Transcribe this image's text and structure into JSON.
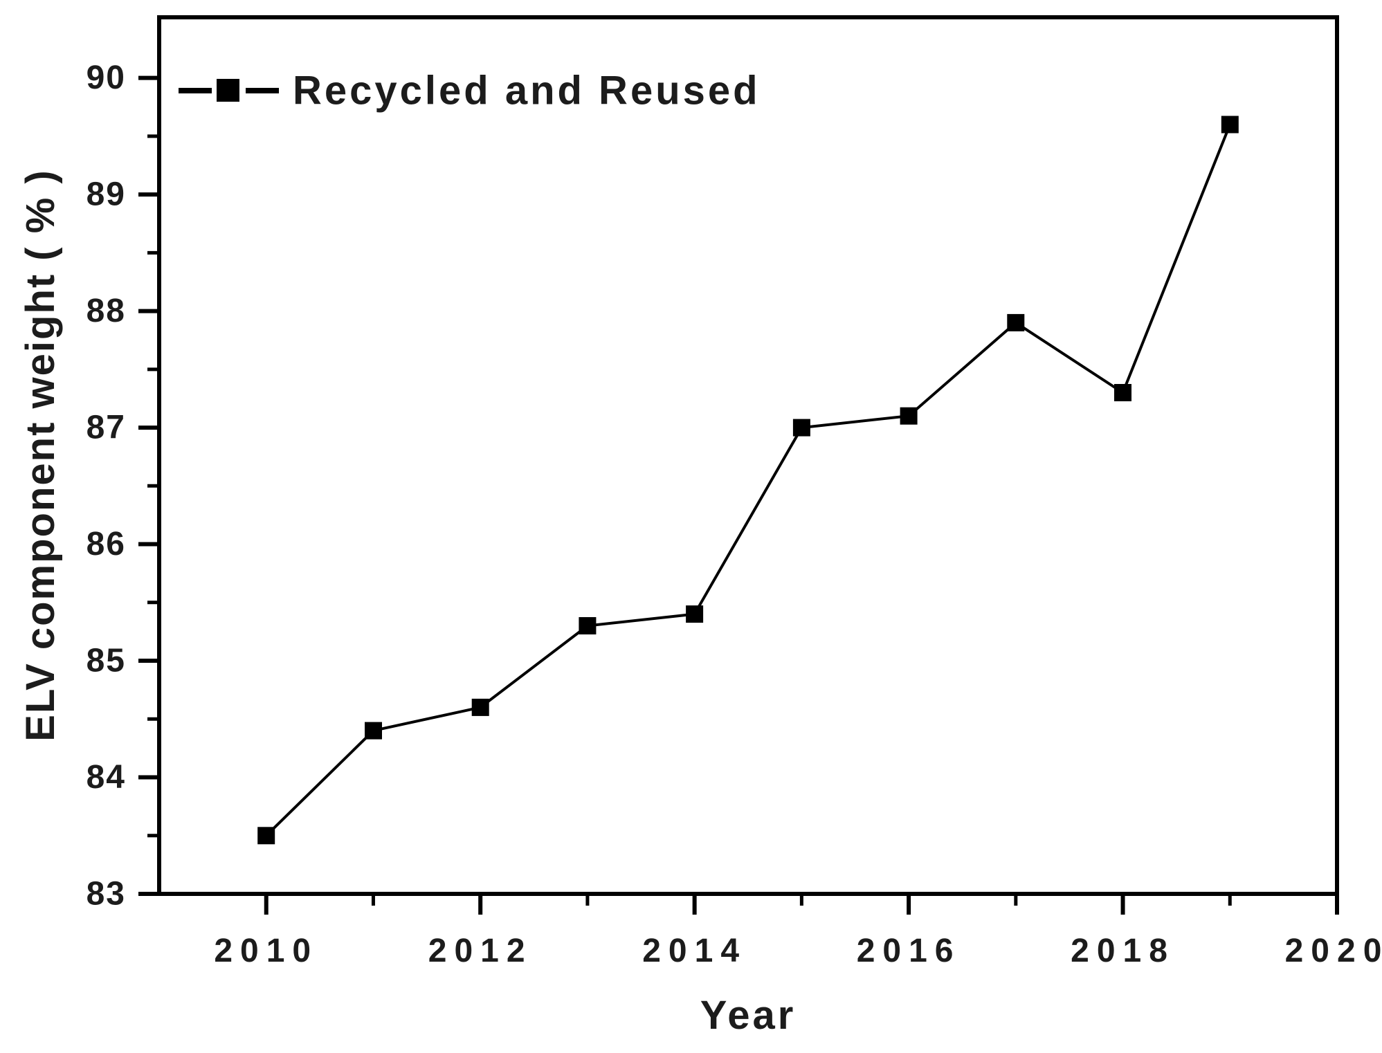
{
  "figure": {
    "background": "#ffffff"
  },
  "chart_data": {
    "type": "line",
    "title": "",
    "xlabel": "Year",
    "ylabel": "ELV component weight ( % )",
    "xlim": [
      2009,
      2020
    ],
    "ylim": [
      83,
      90.52
    ],
    "grid": false,
    "legend_position": "top-left-inside",
    "x_major_ticks": [
      2010,
      2012,
      2014,
      2016,
      2018,
      2020
    ],
    "x_minor_ticks": [
      2011,
      2013,
      2015,
      2017,
      2019
    ],
    "y_major_ticks": [
      83,
      84,
      85,
      86,
      87,
      88,
      89,
      90
    ],
    "y_minor_ticks": [
      83.5,
      84.5,
      85.5,
      86.5,
      87.5,
      88.5,
      89.5
    ],
    "series": [
      {
        "name": "Recycled and Reused",
        "marker": "filled-square",
        "line_style": "solid",
        "x": [
          2010,
          2011,
          2012,
          2013,
          2014,
          2015,
          2016,
          2017,
          2018,
          2019
        ],
        "values": [
          83.5,
          84.4,
          84.6,
          85.3,
          85.4,
          87.0,
          87.1,
          87.9,
          87.3,
          89.6
        ]
      }
    ],
    "colors": {
      "line": "#000000",
      "marker": "#000000",
      "axis": "#000000",
      "text": "#1c1c1c",
      "background": "#ffffff"
    }
  }
}
